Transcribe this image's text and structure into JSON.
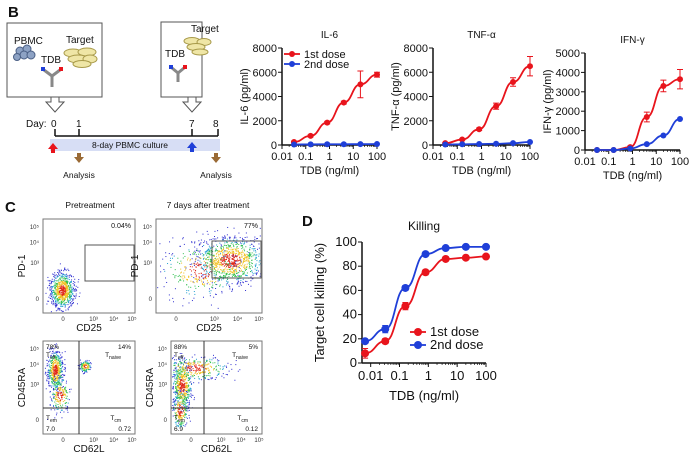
{
  "panel_labels": {
    "b": "B",
    "c": "C",
    "d": "D"
  },
  "schematic": {
    "box1": {
      "pbmc": "PBMC",
      "target": "Target",
      "tdb": "TDB"
    },
    "box2": {
      "target": "Target",
      "tdb": "TDB"
    },
    "day_label": "Day:",
    "days": [
      "0",
      "1",
      "7",
      "8"
    ],
    "culture_label": "8-day PBMC culture",
    "analysis_labels": [
      "Analysis",
      "Analysis"
    ],
    "colors": {
      "band": "#d7def5",
      "first_dose_arrow": "#e8141c",
      "second_dose_arrow": "#1f3fd8",
      "analysis_arrow": "#9a6a35"
    }
  },
  "chart_data": [
    {
      "type": "line",
      "title": "IL-6",
      "xlabel": "TDB (ng/ml)",
      "ylabel": "IL-6 (pg/ml)",
      "xscale": "log",
      "xlim": [
        0.01,
        100
      ],
      "ylim": [
        0,
        8000
      ],
      "xticks": [
        "0.01",
        "0.1",
        "1",
        "10",
        "100"
      ],
      "yticks": [
        "0",
        "2000",
        "4000",
        "6000",
        "8000"
      ],
      "x": [
        0.032,
        0.16,
        0.8,
        4,
        20,
        100
      ],
      "legend": "top-left",
      "series": [
        {
          "name": "1st dose",
          "color": "#e8141c",
          "values": [
            250,
            750,
            1850,
            3500,
            5000,
            5800
          ],
          "errors": [
            60,
            80,
            100,
            120,
            1100,
            200
          ]
        },
        {
          "name": "2nd dose",
          "color": "#1f3fd8",
          "values": [
            40,
            50,
            60,
            60,
            70,
            80
          ],
          "errors": [
            0,
            0,
            0,
            0,
            0,
            0
          ]
        }
      ]
    },
    {
      "type": "line",
      "title": "TNF-α",
      "xlabel": "TDB (ng/ml)",
      "ylabel": "TNF-α (pg/ml)",
      "xscale": "log",
      "xlim": [
        0.01,
        100
      ],
      "ylim": [
        0,
        8000
      ],
      "xticks": [
        "0.01",
        "0.1",
        "1",
        "10",
        "100"
      ],
      "yticks": [
        "0",
        "2000",
        "4000",
        "6000",
        "8000"
      ],
      "x": [
        0.032,
        0.16,
        0.8,
        4,
        20,
        100
      ],
      "series": [
        {
          "name": "1st dose",
          "color": "#e8141c",
          "values": [
            150,
            450,
            1300,
            3200,
            5200,
            6500
          ],
          "errors": [
            40,
            60,
            100,
            250,
            350,
            800
          ]
        },
        {
          "name": "2nd dose",
          "color": "#1f3fd8",
          "values": [
            40,
            60,
            80,
            100,
            150,
            250
          ],
          "errors": [
            0,
            0,
            0,
            0,
            0,
            0
          ]
        }
      ]
    },
    {
      "type": "line",
      "title": "IFN-γ",
      "xlabel": "TDB (ng/ml)",
      "ylabel": "IFN-γ (pg/ml)",
      "xscale": "log",
      "xlim": [
        0.01,
        100
      ],
      "ylim": [
        0,
        5000
      ],
      "xticks": [
        "0.01",
        "0.1",
        "1",
        "10",
        "100"
      ],
      "yticks": [
        "0",
        "1000",
        "2000",
        "3000",
        "4000",
        "5000"
      ],
      "x": [
        0.032,
        0.16,
        0.8,
        4,
        20,
        100
      ],
      "series": [
        {
          "name": "1st dose",
          "color": "#e8141c",
          "values": [
            0,
            0,
            150,
            1700,
            3300,
            3650
          ],
          "errors": [
            0,
            0,
            50,
            250,
            300,
            500
          ]
        },
        {
          "name": "2nd dose",
          "color": "#1f3fd8",
          "values": [
            0,
            0,
            80,
            300,
            750,
            1600
          ],
          "errors": [
            0,
            0,
            0,
            0,
            0,
            0
          ]
        }
      ]
    },
    {
      "type": "line",
      "title": "Killing",
      "xlabel": "TDB (ng/ml)",
      "ylabel": "Target cell killing (%)",
      "xscale": "log",
      "xlim": [
        0.005,
        100
      ],
      "ylim": [
        0,
        100
      ],
      "xticks": [
        "0.01",
        "0.1",
        "1",
        "10",
        "100"
      ],
      "yticks": [
        "0",
        "20",
        "40",
        "60",
        "80",
        "100"
      ],
      "x": [
        0.0064,
        0.032,
        0.16,
        0.8,
        4,
        20,
        100
      ],
      "legend": "bottom-right",
      "series": [
        {
          "name": "1st dose",
          "color": "#e8141c",
          "values": [
            8,
            18,
            47,
            75,
            86,
            87,
            88
          ],
          "errors": [
            4,
            2,
            3,
            2,
            1,
            1,
            1
          ]
        },
        {
          "name": "2nd dose",
          "color": "#1f3fd8",
          "values": [
            18,
            28,
            62,
            90,
            95,
            96,
            96
          ],
          "errors": [
            1,
            3,
            2,
            1,
            1,
            1,
            1
          ]
        }
      ]
    }
  ],
  "flow": {
    "titles": [
      "Pretreatment",
      "7 days  after treatment"
    ],
    "ticks": [
      "0",
      "10³",
      "10⁴",
      "10⁵"
    ],
    "plots": [
      {
        "ylabel": "PD-1",
        "xlabel": "CD25",
        "gate_percent": "0.04%"
      },
      {
        "ylabel": "PD-1",
        "xlabel": "CD25",
        "gate_percent": "77%"
      },
      {
        "ylabel": "CD45RA",
        "xlabel": "CD62L",
        "quadrants": {
          "tl_pct": "78%",
          "tl": "T",
          "tl_sub": "eff",
          "tr_pct": "14%",
          "tr": "T",
          "tr_sub": "naive",
          "bl": "T",
          "bl_sub": "em",
          "bl_pct": "7.0",
          "br": "T",
          "br_sub": "cm",
          "br_pct": "0.72"
        }
      },
      {
        "ylabel": "CD45RA",
        "xlabel": "CD62L",
        "quadrants": {
          "tl_pct": "88%",
          "tl": "T",
          "tl_sub": "eff",
          "tr_pct": "5%",
          "tr": "T",
          "tr_sub": "naive",
          "bl": "T",
          "bl_sub": "em",
          "bl_pct": "6.9",
          "br": "T",
          "br_sub": "cm",
          "br_pct": "0.12"
        }
      }
    ]
  }
}
